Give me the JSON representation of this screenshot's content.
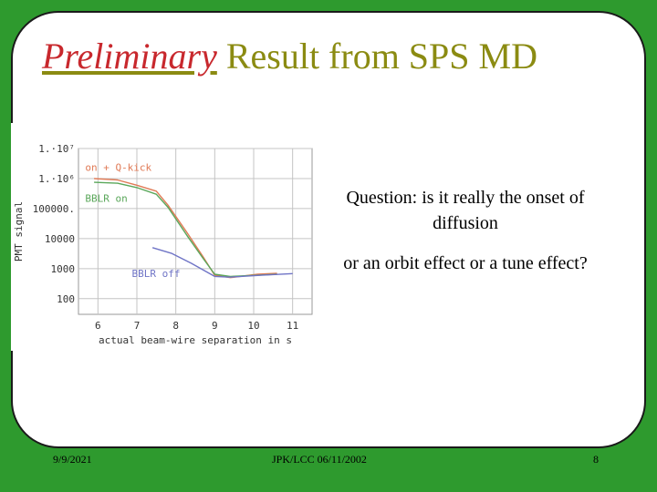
{
  "slide": {
    "title_emphasis": "Preliminary",
    "title_rest": " Result from SPS MD",
    "question": "Question: is it really the onset of diffusion",
    "alternative": "or an orbit effect or a tune effect?",
    "colors": {
      "background": "#2e9a2e",
      "title_text": "#8b8b12",
      "title_emphasis": "#c8282d"
    }
  },
  "footer": {
    "date": "9/9/2021",
    "center": "JPK/LCC 06/11/2002",
    "page": "8"
  },
  "chart_data": {
    "type": "line",
    "xlabel": "actual beam-wire separation in s",
    "ylabel": "PMT signal",
    "x_ticks": [
      6,
      7,
      8,
      9,
      10,
      11
    ],
    "xlim": [
      5.5,
      11.5
    ],
    "y_scale": "log",
    "ylim": [
      30,
      10000000
    ],
    "y_ticks": [
      {
        "value": 10000000,
        "label": "1.·10⁷"
      },
      {
        "value": 1000000,
        "label": "1.·10⁶"
      },
      {
        "value": 100000,
        "label": "100000."
      },
      {
        "value": 10000,
        "label": "10000"
      },
      {
        "value": 1000,
        "label": "1000"
      },
      {
        "value": 100,
        "label": "100"
      }
    ],
    "grid": true,
    "series": [
      {
        "name": "on + Q-kick",
        "color": "#e07a56",
        "x": [
          5.9,
          6.5,
          7.0,
          7.5,
          7.8,
          8.3,
          8.7,
          9.0,
          9.4,
          10.1,
          10.6
        ],
        "y": [
          1000000,
          900000,
          600000,
          380000,
          130000,
          15000,
          2500,
          600,
          500,
          650,
          700
        ]
      },
      {
        "name": "BBLR on",
        "color": "#5aa75a",
        "x": [
          5.9,
          6.5,
          7.0,
          7.5,
          7.8,
          8.3,
          8.7,
          9.0,
          9.4,
          10.1,
          10.6
        ],
        "y": [
          750000,
          700000,
          500000,
          300000,
          110000,
          12000,
          2200,
          650,
          550,
          600,
          650
        ]
      },
      {
        "name": "BBLR off",
        "color": "#6f74c6",
        "x": [
          7.4,
          7.9,
          8.4,
          9.0,
          9.4,
          10.2,
          11.0
        ],
        "y": [
          5000,
          3200,
          1500,
          550,
          520,
          600,
          680
        ]
      }
    ]
  }
}
